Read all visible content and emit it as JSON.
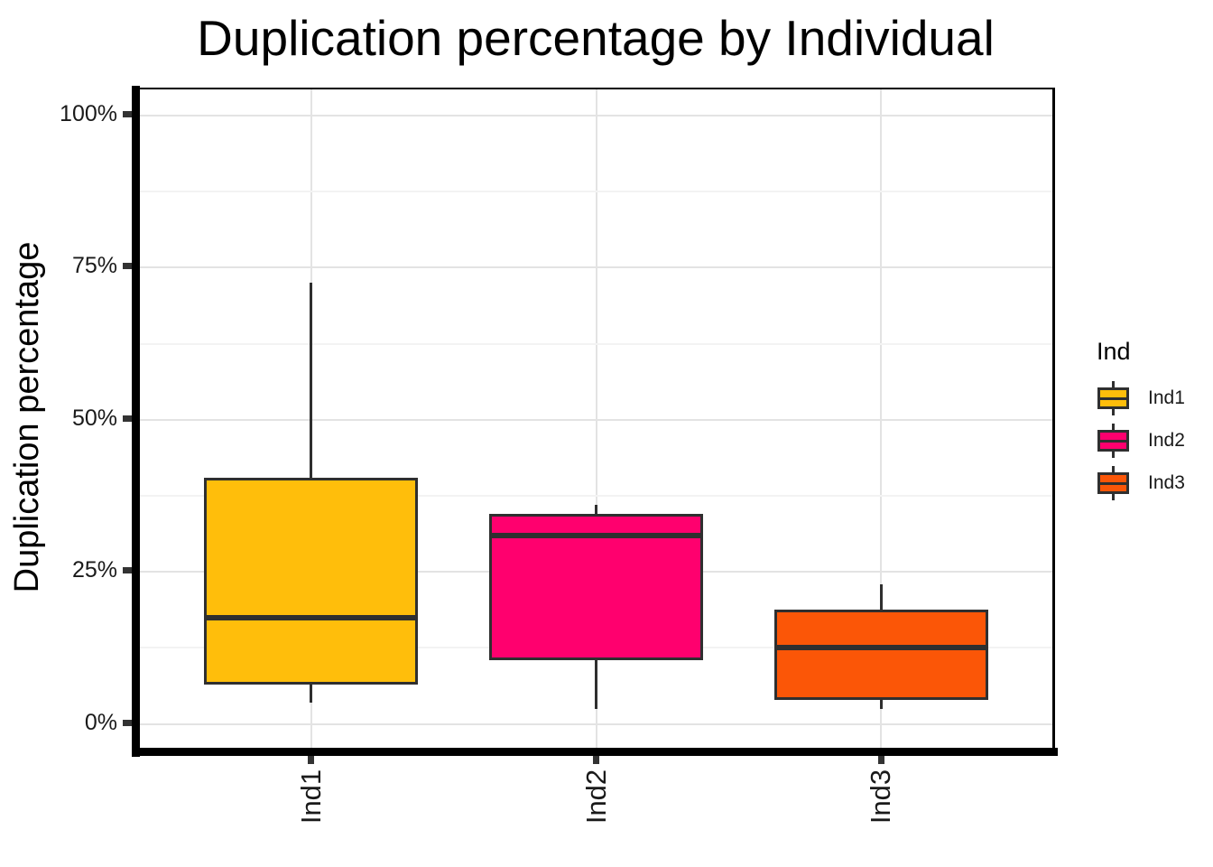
{
  "page": {
    "background": "#FFFFFF"
  },
  "chart_data": {
    "type": "boxplot",
    "title": "Duplication percentage by Individual",
    "ylabel": "Duplication percentage",
    "xlabel": "",
    "categories": [
      "Ind1",
      "Ind2",
      "Ind3"
    ],
    "ylim": [
      -4.2,
      104.3
    ],
    "y_major_ticks": [
      {
        "value": 0,
        "label": "0%"
      },
      {
        "value": 25,
        "label": "25%"
      },
      {
        "value": 50,
        "label": "50%"
      },
      {
        "value": 75,
        "label": "75%"
      },
      {
        "value": 100,
        "label": "100%"
      }
    ],
    "y_minor_ticks": [
      12.5,
      37.5,
      62.5,
      87.5
    ],
    "grid": {
      "major_color": "#E3E3E3",
      "minor_color": "#F3F3F3",
      "grid_on": true
    },
    "series": [
      {
        "name": "Ind1",
        "color": "#FFBE0B",
        "stats": {
          "min": 3.5,
          "q1": 6.5,
          "median": 17.5,
          "q3": 40.5,
          "max": 72.5
        }
      },
      {
        "name": "Ind2",
        "color": "#FF006E",
        "stats": {
          "min": 2.5,
          "q1": 10.5,
          "median": 31,
          "q3": 34.5,
          "max": 36
        }
      },
      {
        "name": "Ind3",
        "color": "#FB5607",
        "stats": {
          "min": 2.5,
          "q1": 4,
          "median": 12.5,
          "q3": 18.8,
          "max": 23
        }
      }
    ],
    "box_style": {
      "border_color": "#2F2F2F",
      "width_ratio": 0.75
    },
    "axis_color": "#000000",
    "tick_color": "#333333",
    "legend": {
      "title": "Ind",
      "position": "right",
      "entries": [
        "Ind1",
        "Ind2",
        "Ind3"
      ]
    }
  }
}
